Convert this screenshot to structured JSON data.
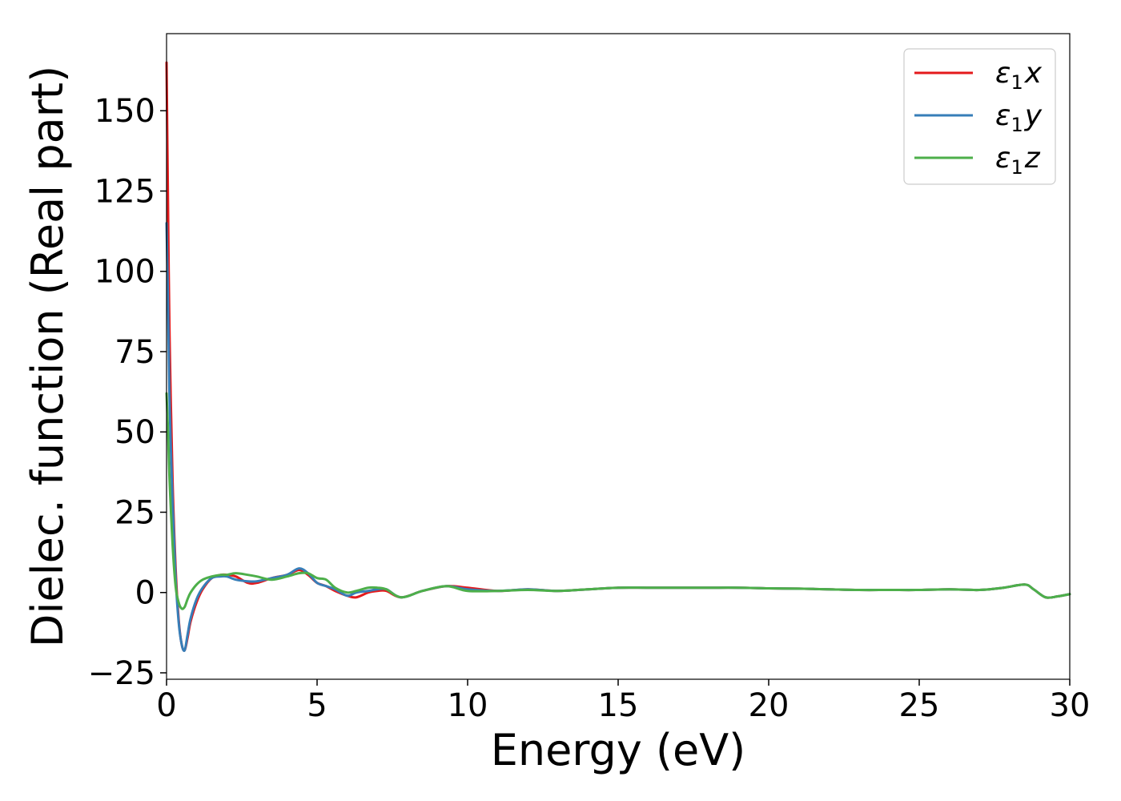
{
  "chart_data": {
    "type": "line",
    "title": "",
    "xlabel": "Energy (eV)",
    "ylabel": "Dielec. function (Real part)",
    "xlim": [
      0,
      30
    ],
    "ylim": [
      -27,
      174
    ],
    "xticks": [
      0,
      5,
      10,
      15,
      20,
      25,
      30
    ],
    "xtick_labels": [
      "0",
      "5",
      "10",
      "15",
      "20",
      "25",
      "30"
    ],
    "yticks": [
      -25,
      0,
      25,
      50,
      75,
      100,
      125,
      150
    ],
    "ytick_labels": [
      "−25",
      "0",
      "25",
      "50",
      "75",
      "100",
      "125",
      "150"
    ],
    "grid": false,
    "legend_position": "top-right",
    "series": [
      {
        "name": "ε1x",
        "legend_symbol": "ε",
        "legend_sub": "1",
        "legend_var": "x",
        "color": "#e41a1c",
        "x": [
          0,
          0.05,
          0.1,
          0.2,
          0.3,
          0.4,
          0.5,
          0.6,
          0.7,
          0.8,
          1.0,
          1.2,
          1.5,
          1.8,
          2.0,
          2.3,
          2.7,
          3.0,
          3.5,
          4.0,
          4.4,
          4.7,
          5.0,
          5.3,
          5.6,
          6.0,
          6.3,
          6.7,
          7.0,
          7.3,
          7.8,
          8.5,
          9.3,
          10.0,
          11.0,
          12.0,
          13.0,
          14.0,
          15.0,
          16.0,
          17.0,
          18.0,
          19.0,
          20.0,
          21.0,
          22.0,
          23.0,
          24.0,
          25.0,
          26.0,
          27.0,
          27.8,
          28.5,
          28.8,
          29.2,
          29.6,
          30.0
        ],
        "y": [
          165,
          120,
          80,
          35,
          8,
          -8,
          -16,
          -18,
          -14,
          -9,
          -3,
          1,
          4.5,
          5.5,
          5.5,
          5,
          3,
          3,
          4.5,
          5.5,
          7,
          5.5,
          3,
          2,
          0.5,
          -1,
          -1.5,
          0,
          0.5,
          0.5,
          -1.5,
          0.5,
          2,
          1.5,
          0.5,
          1,
          0.5,
          1,
          1.5,
          1.5,
          1.5,
          1.5,
          1.5,
          1.3,
          1.2,
          1,
          0.8,
          0.8,
          0.8,
          1,
          0.8,
          1.5,
          2.5,
          1,
          -1.5,
          -1.2,
          -0.5
        ]
      },
      {
        "name": "ε1y",
        "legend_symbol": "ε",
        "legend_sub": "1",
        "legend_var": "y",
        "color": "#377eb8",
        "x": [
          0,
          0.05,
          0.1,
          0.2,
          0.3,
          0.4,
          0.5,
          0.6,
          0.7,
          0.8,
          1.0,
          1.2,
          1.5,
          1.8,
          2.0,
          2.3,
          2.7,
          3.0,
          3.5,
          4.0,
          4.4,
          4.7,
          5.0,
          5.3,
          5.6,
          6.0,
          6.3,
          6.7,
          7.0,
          7.3,
          7.8,
          8.5,
          9.3,
          10.0,
          11.0,
          12.0,
          13.0,
          14.0,
          15.0,
          16.0,
          17.0,
          18.0,
          19.0,
          20.0,
          21.0,
          22.0,
          23.0,
          24.0,
          25.0,
          26.0,
          27.0,
          27.8,
          28.5,
          28.8,
          29.2,
          29.6,
          30.0
        ],
        "y": [
          115,
          90,
          60,
          28,
          5,
          -9,
          -16,
          -18,
          -13,
          -8,
          -2,
          1.5,
          4.5,
          5,
          5,
          4,
          3.5,
          3.5,
          4.5,
          5.5,
          7.5,
          6,
          3,
          2,
          1,
          -1,
          0,
          0.5,
          1,
          1,
          -1.5,
          0.5,
          2,
          1,
          0.5,
          1,
          0.5,
          1,
          1.5,
          1.5,
          1.5,
          1.5,
          1.5,
          1.3,
          1.2,
          1,
          0.8,
          0.8,
          0.8,
          1,
          0.8,
          1.5,
          2.5,
          1,
          -1.5,
          -1.2,
          -0.5
        ]
      },
      {
        "name": "ε1z",
        "legend_symbol": "ε",
        "legend_sub": "1",
        "legend_var": "z",
        "color": "#4daf4a",
        "x": [
          0,
          0.05,
          0.1,
          0.2,
          0.3,
          0.4,
          0.5,
          0.6,
          0.7,
          0.8,
          1.0,
          1.2,
          1.5,
          1.8,
          2.0,
          2.3,
          2.7,
          3.0,
          3.5,
          4.0,
          4.4,
          4.7,
          5.0,
          5.3,
          5.6,
          6.0,
          6.3,
          6.7,
          7.0,
          7.3,
          7.8,
          8.5,
          9.3,
          10.0,
          11.0,
          12.0,
          13.0,
          14.0,
          15.0,
          16.0,
          17.0,
          18.0,
          19.0,
          20.0,
          21.0,
          22.0,
          23.0,
          24.0,
          25.0,
          26.0,
          27.0,
          27.8,
          28.5,
          28.8,
          29.2,
          29.6,
          30.0
        ],
        "y": [
          62,
          50,
          35,
          15,
          2,
          -3,
          -5,
          -4.5,
          -2,
          0,
          2.5,
          4,
          5,
          5.5,
          5.5,
          6,
          5.5,
          5,
          4,
          5,
          6,
          6,
          4.5,
          4,
          1.5,
          0,
          0.5,
          1.5,
          1.5,
          1,
          -1.5,
          0.5,
          2,
          0.5,
          0.5,
          0.8,
          0.5,
          1,
          1.5,
          1.5,
          1.5,
          1.5,
          1.5,
          1.3,
          1.2,
          1,
          0.8,
          0.8,
          0.8,
          1,
          0.8,
          1.5,
          2.5,
          1,
          -1.5,
          -1.2,
          -0.5
        ]
      }
    ]
  }
}
